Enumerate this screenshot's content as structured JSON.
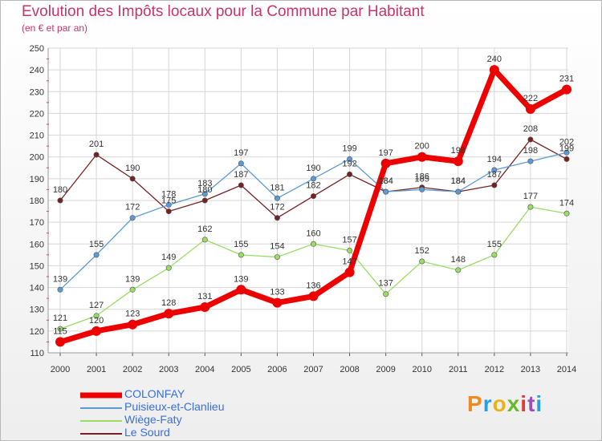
{
  "header": {
    "title": "Evolution des Impôts locaux pour la Commune par Habitant",
    "subtitle": "(en € et par an)"
  },
  "logo": {
    "text": "Proxiti",
    "colors": [
      "#f08a1c",
      "#2aa0d8",
      "#e8b21a",
      "#6ab82e",
      "#e23a3a",
      "#9a4fbf",
      "#2aa0d8"
    ]
  },
  "chart_data": {
    "type": "line",
    "title": "Evolution des Impôts locaux pour la Commune par Habitant",
    "subtitle": "(en € et par an)",
    "x": [
      2000,
      2001,
      2002,
      2003,
      2004,
      2005,
      2006,
      2007,
      2008,
      2009,
      2010,
      2011,
      2012,
      2013,
      2014
    ],
    "ylim": [
      110,
      250
    ],
    "yticks": [
      110,
      120,
      130,
      140,
      150,
      160,
      170,
      180,
      190,
      200,
      210,
      220,
      230,
      240,
      250
    ],
    "grid": true,
    "legend_position": "bottom-left",
    "series": [
      {
        "name": "COLONFAY",
        "color": "#ee0000",
        "values": [
          115,
          120,
          123,
          128,
          131,
          139,
          133,
          136,
          147,
          197,
          200,
          198,
          240,
          222,
          231
        ]
      },
      {
        "name": "Puisieux-et-Clanlieu",
        "color": "#5b9ad6",
        "values": [
          139,
          155,
          172,
          178,
          183,
          197,
          181,
          190,
          199,
          184,
          185,
          184,
          194,
          198,
          202
        ]
      },
      {
        "name": "Wiège-Faty",
        "color": "#99dd66",
        "values": [
          121,
          127,
          139,
          149,
          162,
          155,
          154,
          160,
          157,
          137,
          152,
          148,
          155,
          177,
          174
        ]
      },
      {
        "name": "Le Sourd",
        "color": "#772222",
        "values": [
          180,
          201,
          190,
          175,
          180,
          187,
          172,
          182,
          192,
          184,
          186,
          184,
          187,
          208,
          199
        ]
      }
    ]
  }
}
